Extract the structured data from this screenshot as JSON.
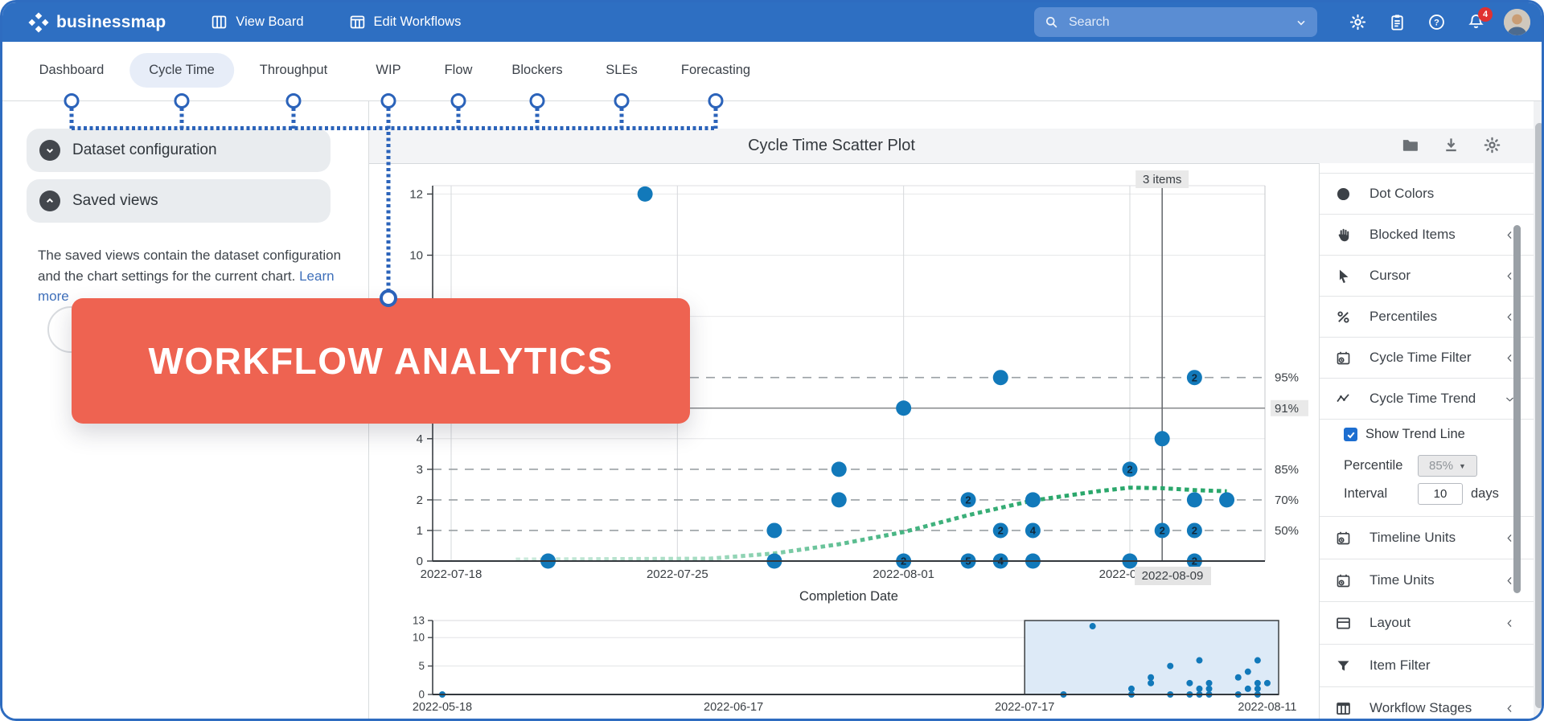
{
  "navbar": {
    "brand": "businessmap",
    "items": [
      {
        "label": "View Board"
      },
      {
        "label": "Edit Workflows"
      }
    ],
    "search_placeholder": "Search",
    "notifications_count": "4"
  },
  "tabs": {
    "items": [
      {
        "label": "Dashboard"
      },
      {
        "label": "Cycle Time",
        "active": true
      },
      {
        "label": "Throughput"
      },
      {
        "label": "WIP"
      },
      {
        "label": "Flow"
      },
      {
        "label": "Blockers"
      },
      {
        "label": "SLEs"
      },
      {
        "label": "Forecasting"
      }
    ]
  },
  "left_panel": {
    "sections": [
      {
        "label": "Dataset configuration",
        "state": "collapsed"
      },
      {
        "label": "Saved views",
        "state": "expanded"
      }
    ],
    "description": "The saved views contain the dataset configuration and the chart settings for the current chart.",
    "learn_more": "Learn more"
  },
  "banner": {
    "text": "WORKFLOW ANALYTICS"
  },
  "chart_header": {
    "title": "Cycle Time Scatter Plot"
  },
  "settings_panel": {
    "items": [
      {
        "label": "Dot Colors",
        "icon": "dot",
        "chevron": "none"
      },
      {
        "label": "Blocked Items",
        "icon": "hand",
        "chevron": "left"
      },
      {
        "label": "Cursor",
        "icon": "cursor",
        "chevron": "left"
      },
      {
        "label": "Percentiles",
        "icon": "percent",
        "chevron": "left"
      },
      {
        "label": "Cycle Time Filter",
        "icon": "calclock",
        "chevron": "left"
      },
      {
        "label": "Cycle Time Trend",
        "icon": "trend",
        "chevron": "down",
        "expanded": true
      },
      {
        "label": "Timeline Units",
        "icon": "calclock",
        "chevron": "left"
      },
      {
        "label": "Time Units",
        "icon": "calclock",
        "chevron": "left"
      },
      {
        "label": "Layout",
        "icon": "layout",
        "chevron": "left"
      },
      {
        "label": "Item Filter",
        "icon": "funnel",
        "chevron": "none"
      },
      {
        "label": "Workflow Stages",
        "icon": "columns",
        "chevron": "left"
      }
    ],
    "trend_options": {
      "show_trend_line": "Show Trend Line",
      "checked": true,
      "percentile_label": "Percentile",
      "percentile_value": "85%",
      "interval_label": "Interval",
      "interval_value": "10",
      "interval_unit": "days"
    }
  },
  "chart_data": {
    "type": "scatter",
    "title": "Cycle Time Scatter Plot",
    "xlabel": "Completion Date",
    "main": {
      "x_ticks": [
        "2022-07-18",
        "2022-07-25",
        "2022-08-01",
        "2022-08-08"
      ],
      "x_range": [
        "2022-07-17",
        "2022-08-12"
      ],
      "y_tick_labels": [
        12,
        10,
        4,
        3,
        2,
        1,
        0
      ],
      "y_gridlines": [
        12,
        10,
        8,
        4
      ],
      "ylim": [
        0,
        12.3
      ],
      "percentiles": [
        {
          "label": "95%",
          "value": 6,
          "style": "dashed"
        },
        {
          "label": "91%",
          "value": 5,
          "style": "solid",
          "highlighted": true
        },
        {
          "label": "85%",
          "value": 3,
          "style": "dashed"
        },
        {
          "label": "70%",
          "value": 2,
          "style": "dashed"
        },
        {
          "label": "50%",
          "value": 1,
          "style": "dashed"
        }
      ],
      "crosshair": {
        "date": "2022-08-09",
        "tooltip": "3 items",
        "axis_label": "2022-08-09"
      },
      "points": [
        {
          "date": "2022-07-21",
          "value": 0
        },
        {
          "date": "2022-07-24",
          "value": 12
        },
        {
          "date": "2022-07-28",
          "value": 0
        },
        {
          "date": "2022-07-28",
          "value": 1
        },
        {
          "date": "2022-07-30",
          "value": 2
        },
        {
          "date": "2022-07-30",
          "value": 3
        },
        {
          "date": "2022-08-01",
          "value": 0,
          "count": 2
        },
        {
          "date": "2022-08-01",
          "value": 5
        },
        {
          "date": "2022-08-03",
          "value": 0,
          "count": 5
        },
        {
          "date": "2022-08-03",
          "value": 2,
          "count": 2
        },
        {
          "date": "2022-08-04",
          "value": 0,
          "count": 4
        },
        {
          "date": "2022-08-04",
          "value": 1,
          "count": 2
        },
        {
          "date": "2022-08-04",
          "value": 6
        },
        {
          "date": "2022-08-05",
          "value": 0
        },
        {
          "date": "2022-08-05",
          "value": 1,
          "count": 4
        },
        {
          "date": "2022-08-05",
          "value": 2
        },
        {
          "date": "2022-08-08",
          "value": 0
        },
        {
          "date": "2022-08-08",
          "value": 3,
          "count": 2
        },
        {
          "date": "2022-08-09",
          "value": 1,
          "count": 2
        },
        {
          "date": "2022-08-09",
          "value": 4
        },
        {
          "date": "2022-08-10",
          "value": 0,
          "count": 2
        },
        {
          "date": "2022-08-10",
          "value": 1,
          "count": 2
        },
        {
          "date": "2022-08-10",
          "value": 2
        },
        {
          "date": "2022-08-10",
          "value": 6,
          "count": 2
        },
        {
          "date": "2022-08-11",
          "value": 2
        }
      ],
      "trend": [
        [
          "2022-07-20",
          0.05
        ],
        [
          "2022-07-26",
          0.08
        ],
        [
          "2022-07-28",
          0.25
        ],
        [
          "2022-07-30",
          0.55
        ],
        [
          "2022-08-01",
          0.95
        ],
        [
          "2022-08-03",
          1.5
        ],
        [
          "2022-08-05",
          1.98
        ],
        [
          "2022-08-07",
          2.28
        ],
        [
          "2022-08-08",
          2.4
        ],
        [
          "2022-08-09",
          2.38
        ],
        [
          "2022-08-10",
          2.32
        ],
        [
          "2022-08-11",
          2.28
        ]
      ]
    },
    "mini": {
      "x_ticks": [
        "2022-05-18",
        "2022-06-17",
        "2022-07-17",
        "2022-08-11"
      ],
      "x_range": [
        "2022-05-17",
        "2022-08-12"
      ],
      "y_tick_labels": [
        13,
        10,
        5,
        0
      ],
      "y_gridlines": [
        10,
        5
      ],
      "ylim": [
        0,
        13
      ],
      "selection": [
        "2022-07-17",
        "2022-08-12"
      ],
      "extra_points": [
        {
          "date": "2022-05-18",
          "value": 0
        }
      ]
    }
  },
  "colors": {
    "navbar": "#2e6fc2",
    "banner": "#ee6351",
    "dot": "#1279ba",
    "trend_line": "#2aa76b",
    "annotation": "#2b63ba",
    "selection_fill": "#ddeaf7"
  }
}
